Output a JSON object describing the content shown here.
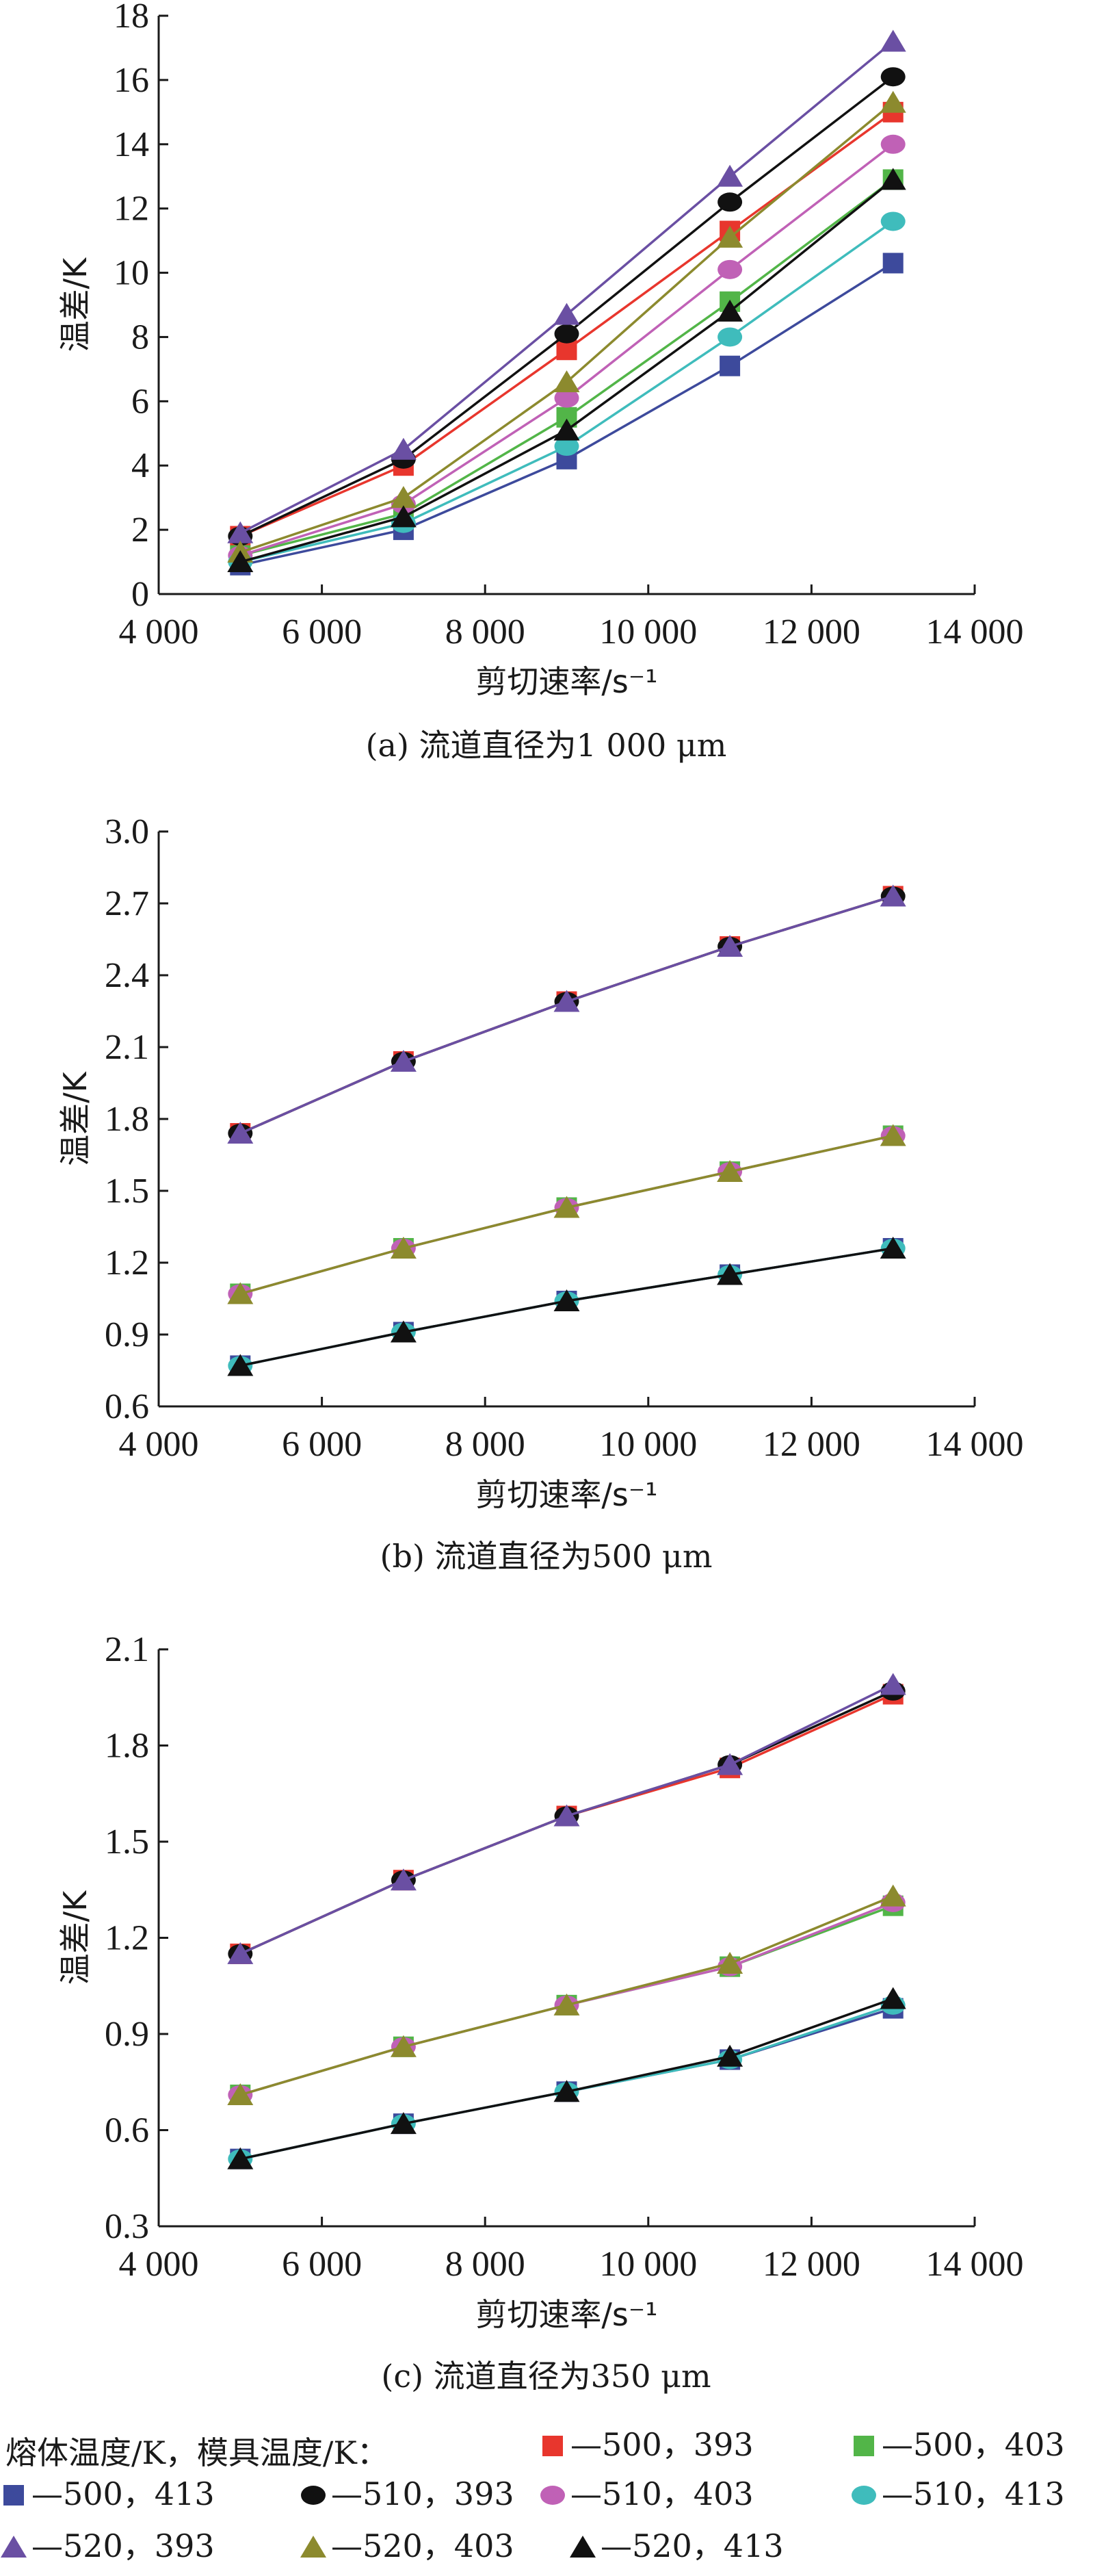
{
  "legend": {
    "title": "熔体温度/K，模具温度/K：",
    "entries": [
      {
        "label": "—500，393",
        "color": "#e8362d",
        "marker": "square"
      },
      {
        "label": "—500，403",
        "color": "#52b548",
        "marker": "square"
      },
      {
        "label": "—500，413",
        "color": "#3d4a9c",
        "marker": "square"
      },
      {
        "label": "—510，393",
        "color": "#111111",
        "marker": "circle"
      },
      {
        "label": "—510，403",
        "color": "#c061b6",
        "marker": "circle"
      },
      {
        "label": "—510，413",
        "color": "#3fbcbc",
        "marker": "circle"
      },
      {
        "label": "—520，393",
        "color": "#6a4fa3",
        "marker": "triangle"
      },
      {
        "label": "—520，403",
        "color": "#8c8a2e",
        "marker": "triangle"
      },
      {
        "label": "—520，413",
        "color": "#111111",
        "marker": "triangle"
      }
    ]
  },
  "chart_data": [
    {
      "type": "line",
      "caption": "(a) 流道直径为1 000 μm",
      "xlabel": "剪切速率/s⁻¹",
      "ylabel": "温差/K",
      "x": [
        5000,
        7000,
        9000,
        11000,
        13000
      ],
      "xlim": [
        4000,
        14000
      ],
      "xticks": [
        4000,
        6000,
        8000,
        10000,
        12000,
        14000
      ],
      "xtick_labels": [
        "4 000",
        "6 000",
        "8 000",
        "10 000",
        "12 000",
        "14 000"
      ],
      "ylim": [
        0,
        18
      ],
      "yticks": [
        0,
        2,
        4,
        6,
        8,
        10,
        12,
        14,
        16,
        18
      ],
      "ytick_labels": [
        "0",
        "2",
        "4",
        "6",
        "8",
        "10",
        "12",
        "14",
        "16",
        "18"
      ],
      "series": [
        {
          "name": "500，393",
          "values": [
            1.8,
            4.0,
            7.6,
            11.3,
            15.0
          ]
        },
        {
          "name": "500，403",
          "values": [
            1.2,
            2.5,
            5.5,
            9.1,
            12.9
          ]
        },
        {
          "name": "500，413",
          "values": [
            0.9,
            2.0,
            4.2,
            7.1,
            10.3
          ]
        },
        {
          "name": "510，393",
          "values": [
            1.8,
            4.2,
            8.1,
            12.2,
            16.1
          ]
        },
        {
          "name": "510，403",
          "values": [
            1.2,
            2.8,
            6.1,
            10.1,
            14.0
          ]
        },
        {
          "name": "510，413",
          "values": [
            1.0,
            2.2,
            4.6,
            8.0,
            11.6
          ]
        },
        {
          "name": "520，393",
          "values": [
            1.9,
            4.5,
            8.7,
            13.0,
            17.2
          ]
        },
        {
          "name": "520，403",
          "values": [
            1.3,
            3.0,
            6.6,
            11.1,
            15.3
          ]
        },
        {
          "name": "520，413",
          "values": [
            1.0,
            2.4,
            5.1,
            8.8,
            12.9
          ]
        }
      ]
    },
    {
      "type": "line",
      "caption": "(b) 流道直径为500 μm",
      "xlabel": "剪切速率/s⁻¹",
      "ylabel": "温差/K",
      "x": [
        5000,
        7000,
        9000,
        11000,
        13000
      ],
      "xlim": [
        4000,
        14000
      ],
      "xticks": [
        4000,
        6000,
        8000,
        10000,
        12000,
        14000
      ],
      "xtick_labels": [
        "4 000",
        "6 000",
        "8 000",
        "10 000",
        "12 000",
        "14 000"
      ],
      "ylim": [
        0.6,
        3.0
      ],
      "yticks": [
        0.6,
        0.9,
        1.2,
        1.5,
        1.8,
        2.1,
        2.4,
        2.7,
        3.0
      ],
      "ytick_labels": [
        "0.6",
        "0.9",
        "1.2",
        "1.5",
        "1.8",
        "2.1",
        "2.4",
        "2.7",
        "3.0"
      ],
      "series": [
        {
          "name": "500，393",
          "values": [
            1.74,
            2.04,
            2.29,
            2.52,
            2.73
          ]
        },
        {
          "name": "500，403",
          "values": [
            1.07,
            1.26,
            1.43,
            1.58,
            1.73
          ]
        },
        {
          "name": "500，413",
          "values": [
            0.77,
            0.91,
            1.04,
            1.15,
            1.26
          ]
        },
        {
          "name": "510，393",
          "values": [
            1.74,
            2.04,
            2.29,
            2.52,
            2.73
          ]
        },
        {
          "name": "510，403",
          "values": [
            1.07,
            1.26,
            1.43,
            1.58,
            1.73
          ]
        },
        {
          "name": "510，413",
          "values": [
            0.77,
            0.91,
            1.04,
            1.15,
            1.26
          ]
        },
        {
          "name": "520，393",
          "values": [
            1.74,
            2.04,
            2.29,
            2.52,
            2.73
          ]
        },
        {
          "name": "520，403",
          "values": [
            1.07,
            1.26,
            1.43,
            1.58,
            1.73
          ]
        },
        {
          "name": "520，413",
          "values": [
            0.77,
            0.91,
            1.04,
            1.15,
            1.26
          ]
        }
      ]
    },
    {
      "type": "line",
      "caption": "(c) 流道直径为350 μm",
      "xlabel": "剪切速率/s⁻¹",
      "ylabel": "温差/K",
      "x": [
        5000,
        7000,
        9000,
        11000,
        13000
      ],
      "xlim": [
        4000,
        14000
      ],
      "xticks": [
        4000,
        6000,
        8000,
        10000,
        12000,
        14000
      ],
      "xtick_labels": [
        "4 000",
        "6 000",
        "8 000",
        "10 000",
        "12 000",
        "14 000"
      ],
      "ylim": [
        0.3,
        2.1
      ],
      "yticks": [
        0.3,
        0.6,
        0.9,
        1.2,
        1.5,
        1.8,
        2.1
      ],
      "ytick_labels": [
        "0.3",
        "0.6",
        "0.9",
        "1.2",
        "1.5",
        "1.8",
        "2.1"
      ],
      "series": [
        {
          "name": "500，393",
          "values": [
            1.15,
            1.38,
            1.58,
            1.73,
            1.96
          ]
        },
        {
          "name": "500，403",
          "values": [
            0.71,
            0.86,
            0.99,
            1.11,
            1.3
          ]
        },
        {
          "name": "500，413",
          "values": [
            0.51,
            0.62,
            0.72,
            0.82,
            0.98
          ]
        },
        {
          "name": "510，393",
          "values": [
            1.15,
            1.38,
            1.58,
            1.74,
            1.97
          ]
        },
        {
          "name": "510，403",
          "values": [
            0.71,
            0.86,
            0.99,
            1.11,
            1.31
          ]
        },
        {
          "name": "510，413",
          "values": [
            0.51,
            0.62,
            0.72,
            0.82,
            0.99
          ]
        },
        {
          "name": "520，393",
          "values": [
            1.15,
            1.38,
            1.58,
            1.74,
            1.99
          ]
        },
        {
          "name": "520，403",
          "values": [
            0.71,
            0.86,
            0.99,
            1.12,
            1.33
          ]
        },
        {
          "name": "520，413",
          "values": [
            0.51,
            0.62,
            0.72,
            0.83,
            1.01
          ]
        }
      ]
    }
  ]
}
